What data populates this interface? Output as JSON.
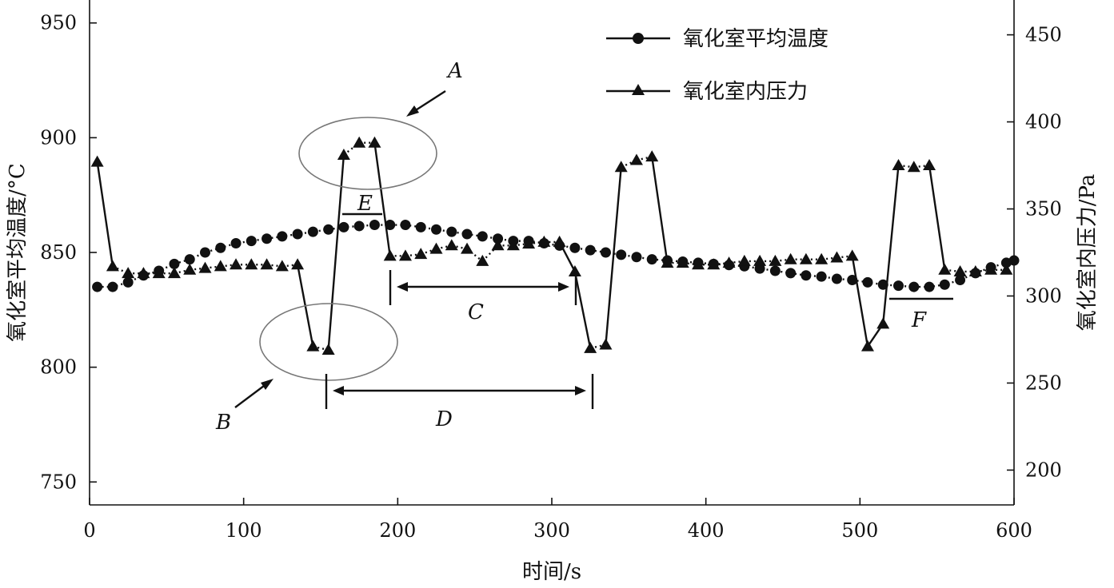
{
  "chart_data": {
    "type": "line",
    "xlabel": "时间/s",
    "ylabel_left": "氧化室平均温度/°C",
    "ylabel_right": "氧化室内压力/Pa",
    "xlim": [
      0,
      600
    ],
    "ylim_left": [
      740,
      960
    ],
    "ylim_right": [
      180,
      470
    ],
    "xticks": [
      0,
      100,
      200,
      300,
      400,
      500,
      600
    ],
    "yticks_left": [
      750,
      800,
      850,
      900,
      950
    ],
    "yticks_right": [
      200,
      250,
      300,
      350,
      400,
      450
    ],
    "legend": {
      "position": "top-right",
      "items": [
        "氧化室平均温度",
        "氧化室内压力"
      ]
    },
    "series": [
      {
        "name": "氧化室平均温度",
        "axis": "left",
        "marker": "circle",
        "x": [
          5,
          15,
          25,
          35,
          45,
          55,
          65,
          75,
          85,
          95,
          105,
          115,
          125,
          135,
          145,
          155,
          165,
          175,
          185,
          195,
          205,
          215,
          225,
          235,
          245,
          255,
          265,
          275,
          285,
          295,
          305,
          315,
          325,
          335,
          345,
          355,
          365,
          375,
          385,
          395,
          405,
          415,
          425,
          435,
          445,
          455,
          465,
          475,
          485,
          495,
          505,
          515,
          525,
          535,
          545,
          555,
          565,
          575,
          585,
          595,
          600
        ],
        "y": [
          835,
          835,
          837,
          840,
          842,
          845,
          847,
          850,
          852,
          854,
          855,
          856,
          857,
          858,
          859,
          860,
          861,
          861.5,
          862,
          862,
          862,
          861,
          860,
          859,
          858,
          857,
          856,
          855,
          855,
          854,
          853,
          852,
          851,
          850,
          849,
          848,
          847,
          846.5,
          846,
          845.5,
          845,
          844.5,
          844,
          843,
          842,
          841,
          840,
          839.5,
          838.5,
          838,
          837,
          836,
          835.5,
          835,
          835,
          836,
          838,
          841,
          843.5,
          845.5,
          846.5
        ]
      },
      {
        "name": "氧化室内压力",
        "axis": "right",
        "marker": "triangle",
        "x": [
          5,
          15,
          25,
          35,
          45,
          55,
          65,
          75,
          85,
          95,
          105,
          115,
          125,
          135,
          145,
          155,
          165,
          175,
          185,
          195,
          205,
          215,
          225,
          235,
          245,
          255,
          265,
          275,
          285,
          295,
          305,
          315,
          325,
          335,
          345,
          355,
          365,
          375,
          385,
          395,
          405,
          415,
          425,
          435,
          445,
          455,
          465,
          475,
          485,
          495,
          505,
          515,
          525,
          535,
          545,
          555,
          565,
          575,
          585,
          595
        ],
        "y": [
          377,
          317,
          313,
          313,
          313,
          313,
          315,
          316,
          317,
          318,
          318,
          318,
          317,
          318,
          271,
          269,
          381,
          388,
          388,
          323,
          323,
          324,
          327,
          329,
          327,
          320,
          329,
          329,
          330,
          331,
          331,
          314,
          270,
          272,
          374,
          378,
          380,
          319,
          319,
          318,
          318,
          319,
          320,
          320,
          320,
          321,
          321,
          321,
          322,
          323,
          271,
          284,
          375,
          374,
          375,
          315,
          314,
          314,
          315,
          315
        ]
      }
    ],
    "annotations": {
      "letters": [
        "A",
        "B",
        "C",
        "D",
        "E",
        "F"
      ]
    }
  }
}
